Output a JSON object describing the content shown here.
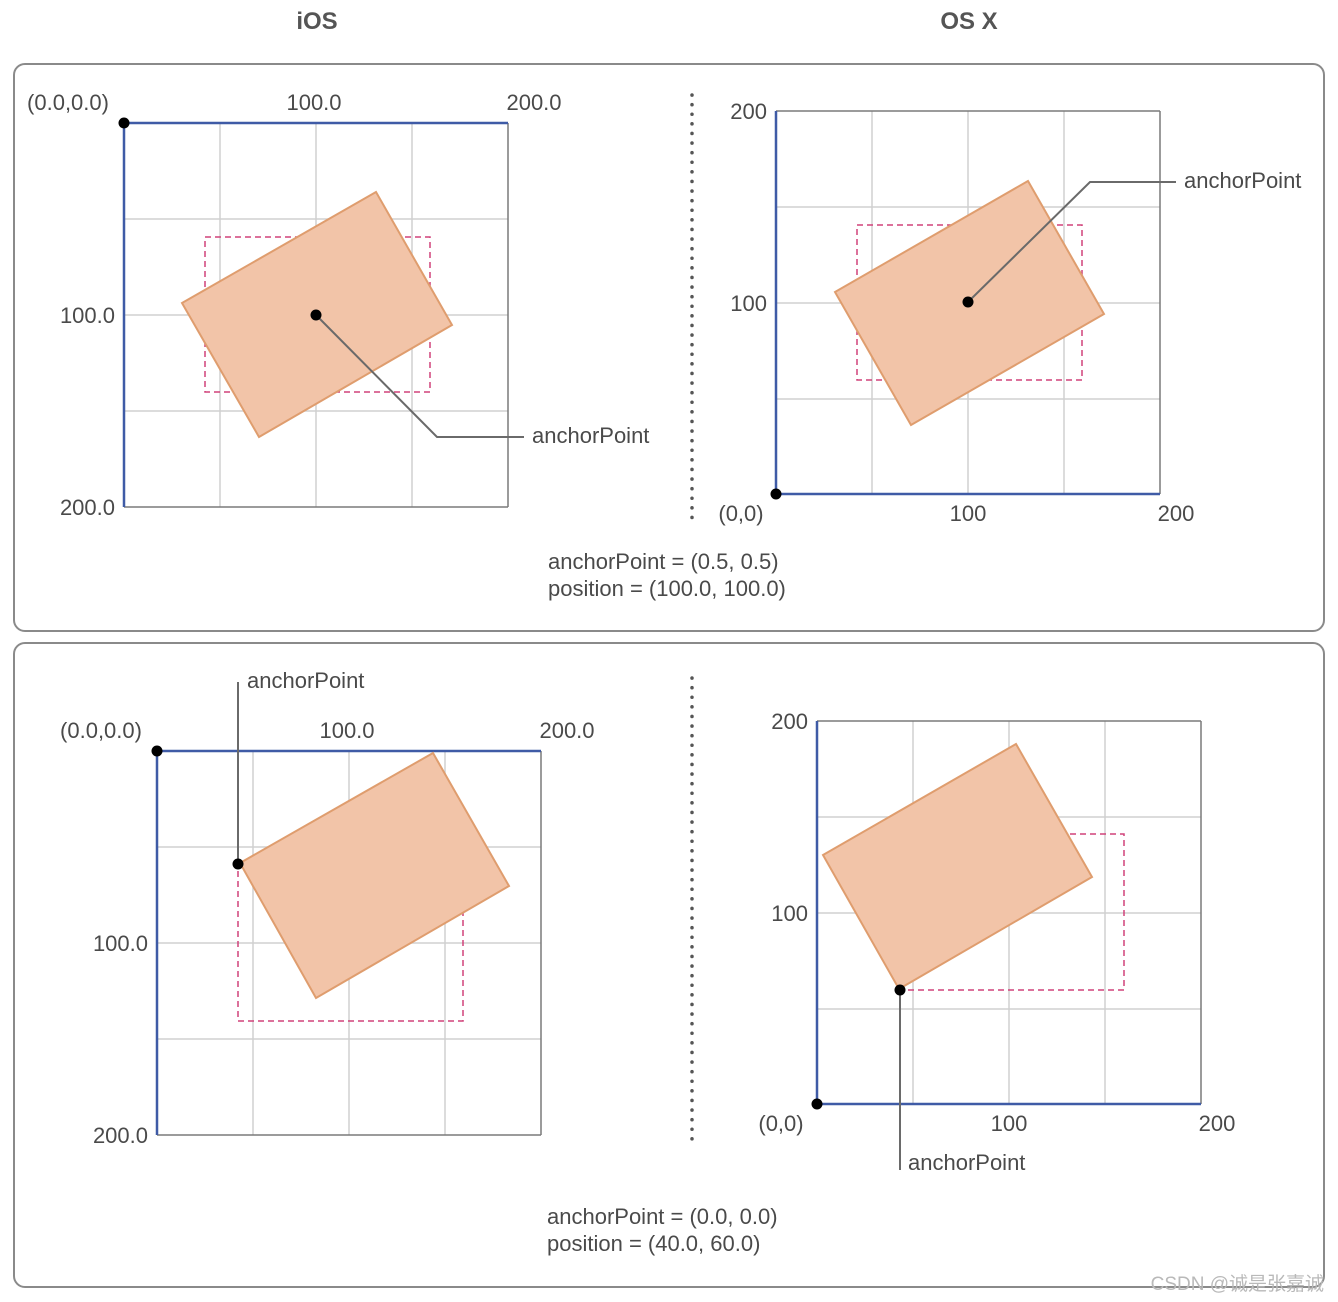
{
  "headings": {
    "ios": "iOS",
    "osx": "OS X"
  },
  "top": {
    "ios": {
      "origin_label": "(0.0,0.0)",
      "x_labels": [
        "100.0",
        "200.0"
      ],
      "y_labels": [
        "100.0",
        "200.0"
      ],
      "anchor_label": "anchorPoint"
    },
    "osx": {
      "origin_label": "(0,0)",
      "x_labels": [
        "100",
        "200"
      ],
      "y_labels": [
        "100",
        "200"
      ],
      "anchor_label": "anchorPoint"
    },
    "caption_line1": "anchorPoint = (0.5, 0.5)",
    "caption_line2": "position = (100.0, 100.0)"
  },
  "bottom": {
    "ios": {
      "origin_label": "(0.0,0.0)",
      "x_labels": [
        "100.0",
        "200.0"
      ],
      "y_labels": [
        "100.0",
        "200.0"
      ],
      "anchor_label": "anchorPoint"
    },
    "osx": {
      "origin_label": "(0,0)",
      "x_labels": [
        "100",
        "200"
      ],
      "y_labels": [
        "100",
        "200"
      ],
      "anchor_label": "anchorPoint"
    },
    "caption_line1": "anchorPoint = (0.0, 0.0)",
    "caption_line2": "position = (40.0, 60.0)"
  },
  "watermark": "CSDN @诚是张嘉诚",
  "colors": {
    "axis": "#3f5ba6",
    "grid": "#d0d0d0",
    "frame": "#7a7a7a",
    "layer_fill": "#f2c4a8",
    "layer_stroke": "#df9d6e",
    "dashed_bounds": "#d0427a",
    "leader": "#6a6a6a"
  }
}
